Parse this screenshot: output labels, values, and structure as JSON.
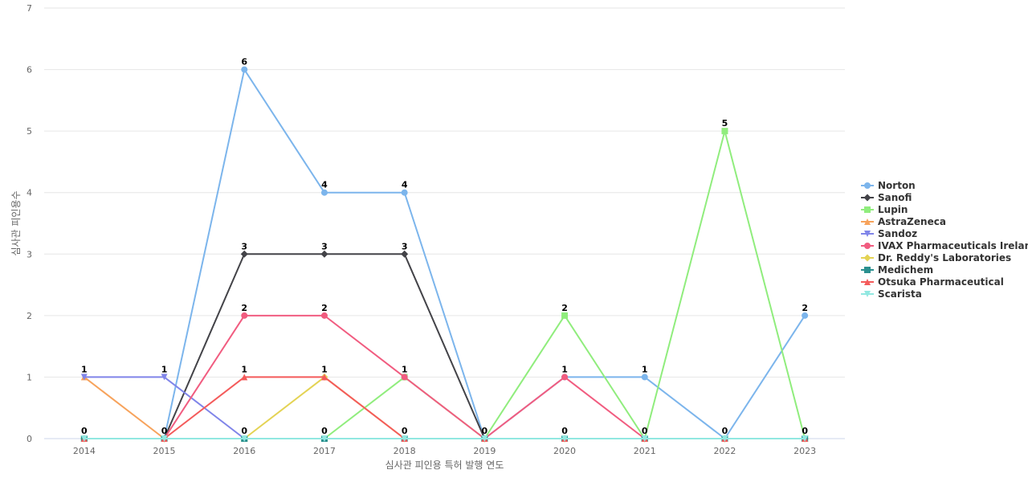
{
  "chart_data": {
    "type": "line",
    "title": "",
    "xlabel": "심사관 피인용 특허 발행 연도",
    "ylabel": "심사관 피인용수",
    "x": [
      "2014",
      "2015",
      "2016",
      "2017",
      "2018",
      "2019",
      "2020",
      "2021",
      "2022",
      "2023"
    ],
    "ylim": [
      0,
      7
    ],
    "y_ticks": [
      0,
      1,
      2,
      3,
      4,
      5,
      6,
      7
    ],
    "grid": true,
    "legend_position": "right",
    "series": [
      {
        "name": "Norton",
        "color": "#7cb5ec",
        "marker": "circle",
        "values": [
          0,
          0,
          6,
          4,
          4,
          0,
          1,
          1,
          0,
          2
        ]
      },
      {
        "name": "Sanofi",
        "color": "#434348",
        "marker": "diamond",
        "values": [
          0,
          0,
          3,
          3,
          3,
          0,
          0,
          0,
          0,
          0
        ]
      },
      {
        "name": "Lupin",
        "color": "#90ed7d",
        "marker": "square",
        "values": [
          0,
          0,
          0,
          0,
          1,
          0,
          2,
          0,
          5,
          0
        ]
      },
      {
        "name": "AstraZeneca",
        "color": "#f7a35c",
        "marker": "triangle",
        "values": [
          1,
          0,
          0,
          0,
          0,
          0,
          0,
          0,
          0,
          0
        ]
      },
      {
        "name": "Sandoz",
        "color": "#8085e9",
        "marker": "triangle-down",
        "values": [
          1,
          1,
          0,
          0,
          0,
          0,
          0,
          0,
          0,
          0
        ]
      },
      {
        "name": "IVAX Pharmaceuticals Ireland",
        "color": "#f15c80",
        "marker": "circle",
        "values": [
          0,
          0,
          2,
          2,
          1,
          0,
          1,
          0,
          0,
          0
        ]
      },
      {
        "name": "Dr. Reddy's Laboratories",
        "color": "#e4d354",
        "marker": "diamond",
        "values": [
          0,
          0,
          0,
          1,
          0,
          0,
          0,
          0,
          0,
          0
        ]
      },
      {
        "name": "Medichem",
        "color": "#2b908f",
        "marker": "square",
        "values": [
          0,
          0,
          0,
          0,
          0,
          0,
          0,
          0,
          0,
          0
        ]
      },
      {
        "name": "Otsuka Pharmaceutical",
        "color": "#f45b5b",
        "marker": "triangle",
        "values": [
          0,
          0,
          1,
          1,
          0,
          0,
          0,
          0,
          0,
          0
        ]
      },
      {
        "name": "Scarista",
        "color": "#91e8e1",
        "marker": "triangle-down",
        "values": [
          0,
          0,
          0,
          0,
          0,
          0,
          0,
          0,
          0,
          0
        ]
      }
    ],
    "data_labels": [
      {
        "x": "2014",
        "value": 1,
        "series": "AstraZeneca"
      },
      {
        "x": "2014",
        "value": 0,
        "series": "Norton"
      },
      {
        "x": "2015",
        "value": 1,
        "series": "Sandoz"
      },
      {
        "x": "2015",
        "value": 0,
        "series": "Norton"
      },
      {
        "x": "2016",
        "value": 6,
        "series": "Norton"
      },
      {
        "x": "2016",
        "value": 3,
        "series": "Sanofi"
      },
      {
        "x": "2016",
        "value": 2,
        "series": "IVAX Pharmaceuticals Ireland"
      },
      {
        "x": "2016",
        "value": 1,
        "series": "Otsuka Pharmaceutical"
      },
      {
        "x": "2016",
        "value": 0,
        "series": "Lupin"
      },
      {
        "x": "2017",
        "value": 4,
        "series": "Norton"
      },
      {
        "x": "2017",
        "value": 3,
        "series": "Sanofi"
      },
      {
        "x": "2017",
        "value": 2,
        "series": "IVAX Pharmaceuticals Ireland"
      },
      {
        "x": "2017",
        "value": 1,
        "series": "Dr. Reddy's Laboratories"
      },
      {
        "x": "2017",
        "value": 0,
        "series": "Lupin"
      },
      {
        "x": "2018",
        "value": 4,
        "series": "Norton"
      },
      {
        "x": "2018",
        "value": 3,
        "series": "Sanofi"
      },
      {
        "x": "2018",
        "value": 1,
        "series": "Lupin"
      },
      {
        "x": "2018",
        "value": 0,
        "series": "AstraZeneca"
      },
      {
        "x": "2019",
        "value": 0,
        "series": "Norton"
      },
      {
        "x": "2020",
        "value": 2,
        "series": "Lupin"
      },
      {
        "x": "2020",
        "value": 1,
        "series": "Norton"
      },
      {
        "x": "2020",
        "value": 0,
        "series": "Sanofi"
      },
      {
        "x": "2021",
        "value": 1,
        "series": "Norton"
      },
      {
        "x": "2021",
        "value": 0,
        "series": "Sanofi"
      },
      {
        "x": "2022",
        "value": 5,
        "series": "Lupin"
      },
      {
        "x": "2022",
        "value": 0,
        "series": "Norton"
      },
      {
        "x": "2023",
        "value": 2,
        "series": "Norton"
      },
      {
        "x": "2023",
        "value": 0,
        "series": "Lupin"
      }
    ]
  }
}
